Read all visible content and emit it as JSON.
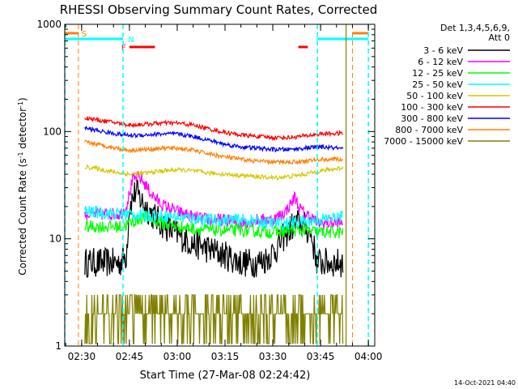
{
  "chart_data": {
    "type": "line",
    "title": "RHESSI Observing Summary Count Rates, Corrected",
    "xlabel": "Start Time (27-Mar-08 02:24:42)",
    "ylabel_main": "Corrected Count Rate (s",
    "ylabel_sup1": "-1",
    "ylabel_mid": " detector",
    "ylabel_sup2": "-1",
    "ylabel_end": ")",
    "yscale": "log",
    "ylim": [
      1,
      1000
    ],
    "xlim": [
      "02:24:42",
      "04:02:00"
    ],
    "ytick_labels": [
      "1",
      "10",
      "100",
      "1000"
    ],
    "xtick_labels": [
      "02:30",
      "02:45",
      "03:00",
      "03:15",
      "03:30",
      "03:45",
      "04:00"
    ],
    "legend_position": "right",
    "legend_header": [
      "Det 1,3,4,5,6,9,",
      "Att 0"
    ],
    "timestamp": "14-Oct-2021 04:40",
    "flag_labels": {
      "saa": "S",
      "night": "N",
      "flare": "F"
    },
    "colors": {
      "3 - 6 keV": "#000000",
      "6 - 12 keV": "#ff00ff",
      "12 - 25 keV": "#00ff00",
      "25 - 50 keV": "#00ffff",
      "50 - 100 keV": "#d4c800",
      "100 - 300 keV": "#ff0000",
      "300 - 800 keV": "#0000ff",
      "800 - 7000 keV": "#ff8000",
      "7000 - 15000 keV": "#808000"
    },
    "series": [
      {
        "name": "3 - 6 keV",
        "color": "#000000",
        "x": [
          "02:31:00",
          "02:42:00",
          "02:43:00",
          "02:44:00",
          "02:45:00",
          "02:47:00",
          "02:49:00",
          "02:52:00",
          "02:55:00",
          "03:00:00",
          "03:05:00",
          "03:10:00",
          "03:15:00",
          "03:20:00",
          "03:25:00",
          "03:28:00",
          "03:31:00",
          "03:34:00",
          "03:36:00",
          "03:38:00",
          "03:40:00",
          "03:42:00",
          "03:43:00",
          "03:44:00",
          "03:45:00",
          "03:52:00"
        ],
        "y": [
          6,
          6,
          6.5,
          7,
          20,
          28,
          22,
          17,
          14,
          11,
          9,
          8,
          7,
          6,
          6,
          6.5,
          8,
          11,
          13,
          14,
          13,
          11,
          8,
          6,
          6,
          6
        ]
      },
      {
        "name": "6 - 12 keV",
        "color": "#ff00ff",
        "x": [
          "02:31:00",
          "02:42:00",
          "02:43:00",
          "02:44:00",
          "02:46:00",
          "02:48:00",
          "02:50:00",
          "02:52:00",
          "02:55:00",
          "03:00:00",
          "03:05:00",
          "03:10:00",
          "03:15:00",
          "03:20:00",
          "03:25:00",
          "03:30:00",
          "03:34:00",
          "03:36:00",
          "03:37:00",
          "03:38:00",
          "03:40:00",
          "03:42:00",
          "03:43:00",
          "03:44:00",
          "03:52:00"
        ],
        "y": [
          17,
          17,
          18,
          20,
          35,
          38,
          32,
          26,
          21,
          18,
          16,
          15,
          15,
          14,
          15,
          15,
          18,
          22,
          25,
          20,
          17,
          16,
          15,
          14,
          14
        ]
      },
      {
        "name": "12 - 25 keV",
        "color": "#00ff00",
        "x": [
          "02:31:00",
          "02:42:00",
          "02:43:00",
          "02:45:00",
          "02:50:00",
          "02:55:00",
          "03:00:00",
          "03:10:00",
          "03:20:00",
          "03:30:00",
          "03:35:00",
          "03:40:00",
          "03:44:00",
          "03:52:00"
        ],
        "y": [
          13,
          13,
          13,
          14,
          16,
          14,
          13,
          12,
          12,
          11.5,
          12,
          12,
          11.5,
          11.5
        ]
      },
      {
        "name": "25 - 50 keV",
        "color": "#00ffff",
        "x": [
          "02:31:00",
          "02:42:00",
          "02:45:00",
          "02:50:00",
          "02:55:00",
          "03:00:00",
          "03:10:00",
          "03:20:00",
          "03:30:00",
          "03:35:00",
          "03:40:00",
          "03:44:00",
          "03:52:00"
        ],
        "y": [
          18,
          17,
          17,
          16.5,
          16.5,
          16,
          15,
          15,
          14,
          14,
          14.5,
          15,
          16
        ]
      },
      {
        "name": "50 - 100 keV",
        "color": "#d4c800",
        "x": [
          "02:31:00",
          "02:35:00",
          "02:40:00",
          "02:45:00",
          "02:50:00",
          "02:55:00",
          "03:00:00",
          "03:05:00",
          "03:10:00",
          "03:15:00",
          "03:20:00",
          "03:25:00",
          "03:30:00",
          "03:35:00",
          "03:40:00",
          "03:45:00",
          "03:50:00",
          "03:52:00"
        ],
        "y": [
          47,
          45,
          42,
          40,
          41,
          43,
          44,
          43,
          41,
          40,
          39,
          38,
          37,
          38,
          40,
          43,
          45,
          46
        ]
      },
      {
        "name": "100 - 300 keV",
        "color": "#ff0000",
        "x": [
          "02:31:00",
          "02:35:00",
          "02:40:00",
          "02:45:00",
          "02:50:00",
          "02:55:00",
          "03:00:00",
          "03:05:00",
          "03:10:00",
          "03:15:00",
          "03:20:00",
          "03:25:00",
          "03:30:00",
          "03:35:00",
          "03:40:00",
          "03:45:00",
          "03:50:00",
          "03:52:00"
        ],
        "y": [
          135,
          128,
          122,
          115,
          117,
          120,
          120,
          115,
          106,
          98,
          93,
          90,
          88,
          88,
          91,
          95,
          96,
          96
        ]
      },
      {
        "name": "300 - 800 keV",
        "color": "#0000ff",
        "x": [
          "02:31:00",
          "02:35:00",
          "02:40:00",
          "02:45:00",
          "02:50:00",
          "02:55:00",
          "03:00:00",
          "03:05:00",
          "03:10:00",
          "03:15:00",
          "03:20:00",
          "03:25:00",
          "03:30:00",
          "03:35:00",
          "03:40:00",
          "03:45:00",
          "03:50:00",
          "03:52:00"
        ],
        "y": [
          108,
          102,
          96,
          92,
          93,
          95,
          95,
          90,
          83,
          76,
          72,
          70,
          68,
          68,
          70,
          72,
          70,
          68
        ]
      },
      {
        "name": "800 - 7000 keV",
        "color": "#ff8000",
        "x": [
          "02:31:00",
          "02:35:00",
          "02:40:00",
          "02:45:00",
          "02:50:00",
          "02:55:00",
          "03:00:00",
          "03:05:00",
          "03:10:00",
          "03:15:00",
          "03:20:00",
          "03:25:00",
          "03:30:00",
          "03:35:00",
          "03:40:00",
          "03:45:00",
          "03:50:00",
          "03:52:00"
        ],
        "y": [
          80,
          76,
          71,
          67,
          68,
          70,
          70,
          67,
          62,
          58,
          55,
          53,
          52,
          52,
          53,
          55,
          55,
          55
        ]
      },
      {
        "name": "7000 - 15000 keV",
        "color": "#808000",
        "x": [
          "02:31:00",
          "02:42:00",
          "02:45:00",
          "02:50:00",
          "02:55:00",
          "03:00:00",
          "03:10:00",
          "03:20:00",
          "03:30:00",
          "03:35:00",
          "03:40:00",
          "03:45:00",
          "03:52:00"
        ],
        "y": [
          2,
          2,
          2,
          2.5,
          2.5,
          3,
          2.5,
          2.5,
          2,
          2.5,
          2.5,
          2.5,
          2.5
        ]
      }
    ],
    "saa_vlines": [
      "02:29:00",
      "03:55:00"
    ],
    "night_vlines": [
      "02:24:42",
      "02:43:00",
      "03:44:00",
      "04:00:00"
    ],
    "end_vline": "03:53:00",
    "saa_bars": [
      [
        "02:24:42",
        "02:29:00"
      ],
      [
        "03:55:00",
        "04:00:00"
      ]
    ],
    "night_bars": [
      [
        "02:24:42",
        "02:43:00"
      ],
      [
        "03:44:00",
        "04:00:00"
      ]
    ],
    "flare_bars": [
      [
        "02:45:00",
        "02:53:00"
      ],
      [
        "03:38:00",
        "03:41:00"
      ]
    ]
  }
}
